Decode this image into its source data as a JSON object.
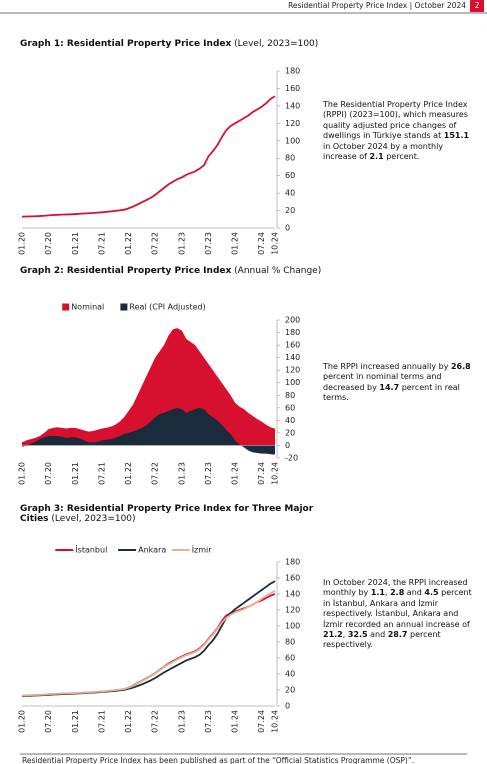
{
  "header": {
    "title": "Residential Property Price Index | October 2024",
    "page": "2"
  },
  "chart_data": [
    {
      "type": "line",
      "title": "Graph 1: Residential Property Price Index",
      "subtitle": "(Level, 2023=100)",
      "categories": [
        "01.20",
        null,
        null,
        null,
        null,
        null,
        "07.20",
        null,
        null,
        null,
        null,
        null,
        "01.21",
        null,
        null,
        null,
        null,
        null,
        "07.21",
        null,
        null,
        null,
        null,
        null,
        "01.22",
        null,
        null,
        null,
        null,
        null,
        "07.22",
        null,
        null,
        null,
        null,
        null,
        "01.23",
        null,
        null,
        null,
        null,
        null,
        "07.23",
        null,
        null,
        null,
        null,
        null,
        "01.24",
        null,
        null,
        null,
        null,
        null,
        "07.24",
        null,
        null,
        "10.24"
      ],
      "series": [
        {
          "color": "#d7102f",
          "values": [
            13.0,
            13.2,
            13.3,
            13.5,
            13.7,
            14.0,
            14.5,
            14.9,
            15.1,
            15.3,
            15.5,
            15.7,
            16.0,
            16.3,
            16.6,
            16.9,
            17.2,
            17.6,
            18.0,
            18.5,
            19.0,
            19.6,
            20.2,
            21.0,
            22.5,
            24.5,
            27.0,
            29.5,
            32.0,
            34.5,
            38.0,
            42.0,
            46.0,
            50.0,
            53.0,
            56.0,
            58,
            61,
            63,
            65,
            68,
            72,
            82,
            88,
            95,
            104,
            112,
            117,
            120,
            123,
            126,
            129,
            133,
            136,
            139,
            143,
            148,
            151.1
          ]
        }
      ],
      "ylim": [
        0,
        180
      ],
      "yticks": [
        0,
        20,
        40,
        60,
        80,
        100,
        120,
        140,
        160,
        180
      ]
    },
    {
      "type": "area",
      "title": "Graph 2: Residential Property Price Index",
      "subtitle": "(Annual % Change)",
      "categories": [
        "01.20",
        null,
        null,
        null,
        null,
        null,
        "07.20",
        null,
        null,
        null,
        null,
        null,
        "01.21",
        null,
        null,
        null,
        null,
        null,
        "07.21",
        null,
        null,
        null,
        null,
        null,
        "01.22",
        null,
        null,
        null,
        null,
        null,
        "07.22",
        null,
        null,
        null,
        null,
        null,
        "01.23",
        null,
        null,
        null,
        null,
        null,
        "07.23",
        null,
        null,
        null,
        null,
        null,
        "01.24",
        null,
        null,
        null,
        null,
        null,
        "07.24",
        null,
        null,
        "10.24"
      ],
      "series": [
        {
          "name": "Nominal",
          "color": "#d7102f",
          "values": [
            5,
            8,
            10,
            12,
            15,
            20,
            26,
            28,
            29,
            28,
            27,
            28,
            28,
            26,
            24,
            22,
            23,
            25,
            27,
            28,
            30,
            33,
            38,
            45,
            55,
            65,
            80,
            95,
            110,
            125,
            140,
            150,
            160,
            175,
            185,
            187,
            183,
            170,
            165,
            160,
            150,
            140,
            130,
            120,
            110,
            100,
            90,
            80,
            68,
            62,
            58,
            52,
            47,
            42,
            38,
            33,
            29,
            26.8
          ]
        },
        {
          "name": "Real (CPI Adjusted)",
          "color": "#1c2b3c",
          "values": [
            -2,
            0,
            3,
            6,
            10,
            13,
            15,
            15,
            15,
            14,
            12,
            13,
            13,
            11,
            8,
            5,
            5,
            6,
            8,
            9,
            10,
            12,
            15,
            18,
            20,
            22,
            25,
            28,
            32,
            38,
            45,
            50,
            52,
            55,
            58,
            60,
            58,
            52,
            55,
            58,
            60,
            58,
            50,
            45,
            40,
            33,
            25,
            18,
            8,
            2,
            -3,
            -8,
            -11,
            -12,
            -13,
            -13,
            -14,
            -14.7
          ]
        }
      ],
      "ylim": [
        -20,
        200
      ],
      "yticks": [
        -20,
        0,
        20,
        40,
        60,
        80,
        100,
        120,
        140,
        160,
        180,
        200
      ]
    },
    {
      "type": "line",
      "title": "Graph 3: Residential Property Price Index for Three Major Cities",
      "subtitle": "(Level, 2023=100)",
      "categories": [
        "01.20",
        null,
        null,
        null,
        null,
        null,
        "07.20",
        null,
        null,
        null,
        null,
        null,
        "01.21",
        null,
        null,
        null,
        null,
        null,
        "07.21",
        null,
        null,
        null,
        null,
        null,
        "01.22",
        null,
        null,
        null,
        null,
        null,
        "07.22",
        null,
        null,
        null,
        null,
        null,
        "01.23",
        null,
        null,
        null,
        null,
        null,
        "07.23",
        null,
        null,
        null,
        null,
        null,
        "01.24",
        null,
        null,
        null,
        null,
        null,
        "07.24",
        null,
        null,
        "10.24"
      ],
      "series": [
        {
          "name": "İstanbul",
          "color": "#d7102f",
          "values": [
            13,
            13.2,
            13.4,
            13.6,
            13.8,
            14.1,
            14.6,
            15,
            15.2,
            15.4,
            15.6,
            15.8,
            16,
            16.3,
            16.6,
            16.9,
            17.2,
            17.6,
            18,
            18.5,
            19,
            19.6,
            20.3,
            21.2,
            23,
            25.5,
            28.5,
            31.5,
            34.5,
            37.5,
            41,
            45,
            49,
            53,
            56,
            59,
            62,
            64.5,
            66.5,
            68.5,
            72,
            77,
            84,
            90,
            97,
            106,
            113,
            116,
            118,
            120,
            122,
            124,
            127,
            130,
            132,
            135,
            138,
            140
          ]
        },
        {
          "name": "Ankara",
          "color": "#1c2b3c",
          "values": [
            12.5,
            12.7,
            12.9,
            13.1,
            13.3,
            13.6,
            14,
            14.4,
            14.6,
            14.8,
            15,
            15.2,
            15.5,
            15.8,
            16.1,
            16.4,
            16.7,
            17.1,
            17.5,
            18,
            18.5,
            19,
            19.6,
            20.2,
            21.5,
            23,
            25,
            27,
            29.5,
            32,
            35,
            38.5,
            42,
            45,
            48,
            51,
            54,
            57,
            59,
            61,
            64,
            69,
            76,
            82,
            90,
            100,
            110,
            116,
            121,
            125,
            129,
            133,
            137,
            141,
            145,
            149,
            153,
            156
          ]
        },
        {
          "name": "İzmir",
          "color": "#e3b49a",
          "values": [
            13.2,
            13.4,
            13.6,
            13.8,
            14,
            14.3,
            14.8,
            15.2,
            15.4,
            15.6,
            15.8,
            16,
            16.2,
            16.5,
            16.8,
            17.1,
            17.4,
            17.8,
            18.2,
            18.7,
            19.2,
            19.8,
            20.5,
            21.3,
            23,
            25,
            28,
            31,
            34,
            37,
            40.5,
            44.5,
            48.5,
            52,
            55,
            58,
            61,
            63.5,
            65.5,
            67.5,
            71,
            76,
            83,
            89,
            96,
            104,
            110,
            114,
            117,
            119,
            121,
            124,
            127,
            130,
            134,
            138,
            141,
            144
          ]
        }
      ],
      "ylim": [
        0,
        180
      ],
      "yticks": [
        0,
        20,
        40,
        60,
        80,
        100,
        120,
        140,
        160,
        180
      ]
    }
  ],
  "notes": [
    [
      {
        "text": "The Residential Property Price Index (RPPI) (2023=100), which measures quality adjusted price changes of dwellings in Türkiye stands at ",
        "bold": false
      },
      {
        "text": "151.1",
        "bold": true
      },
      {
        "text": " in October 2024 by a monthly increase of ",
        "bold": false
      },
      {
        "text": "2.1",
        "bold": true
      },
      {
        "text": " percent.",
        "bold": false
      }
    ],
    [
      {
        "text": "The RPPI increased annually by ",
        "bold": false
      },
      {
        "text": "26.8",
        "bold": true
      },
      {
        "text": " percent in nominal terms and decreased by ",
        "bold": false
      },
      {
        "text": "14.7",
        "bold": true
      },
      {
        "text": " percent in real terms.",
        "bold": false
      }
    ],
    [
      {
        "text": "In October 2024, the RPPI increased monthly by ",
        "bold": false
      },
      {
        "text": "1.1",
        "bold": true
      },
      {
        "text": ", ",
        "bold": false
      },
      {
        "text": "2.8",
        "bold": true
      },
      {
        "text": " and ",
        "bold": false
      },
      {
        "text": "4.5",
        "bold": true
      },
      {
        "text": " percent in İstanbul, Ankara and İzmir respectively. İstanbul, Ankara and İzmir recorded an annual increase of ",
        "bold": false
      },
      {
        "text": "21.2",
        "bold": true
      },
      {
        "text": ", ",
        "bold": false
      },
      {
        "text": "32.5",
        "bold": true
      },
      {
        "text": " and ",
        "bold": false
      },
      {
        "text": "28.7",
        "bold": true
      },
      {
        "text": " percent respectively.",
        "bold": false
      }
    ]
  ],
  "footer": "Residential Property Price Index has been published as part of the “Official Statistics Programme (OSP)”."
}
